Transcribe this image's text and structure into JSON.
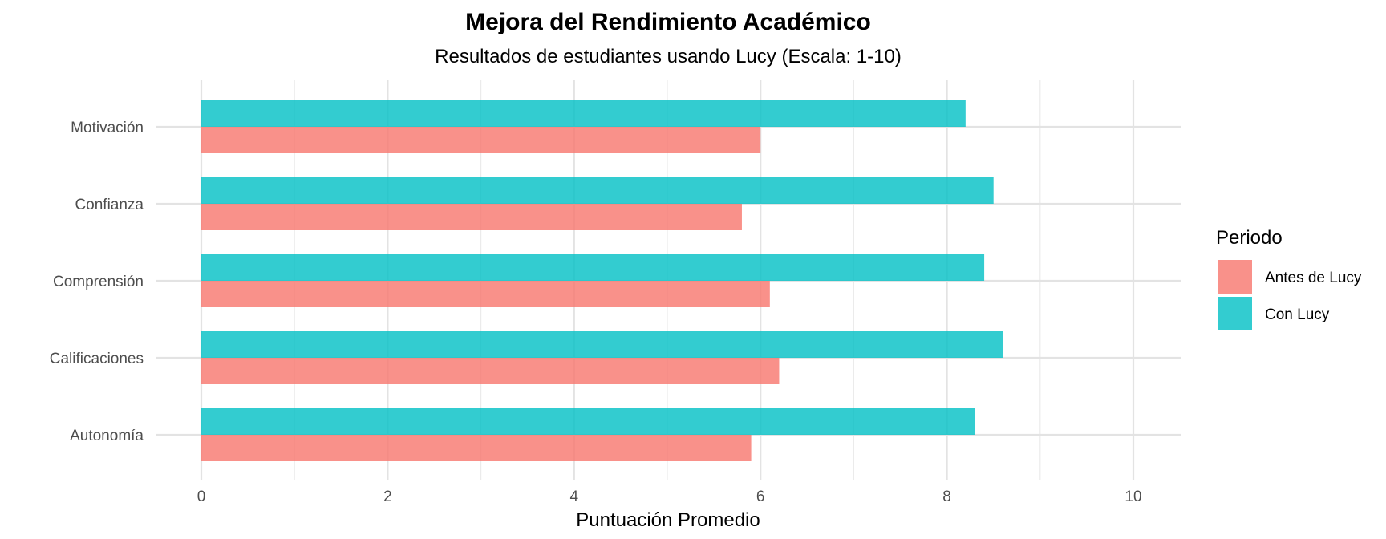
{
  "chart_data": {
    "type": "bar",
    "orientation": "horizontal",
    "title": "Mejora del Rendimiento Académico",
    "subtitle": "Resultados de estudiantes usando Lucy (Escala: 1-10)",
    "xlabel": "Puntuación Promedio",
    "ylabel": "",
    "xlim": [
      0,
      10
    ],
    "xticks": [
      0,
      2,
      4,
      6,
      8,
      10
    ],
    "grid": true,
    "legend": {
      "title": "Periodo",
      "position": "right"
    },
    "categories": [
      "Motivación",
      "Confianza",
      "Comprensión",
      "Calificaciones",
      "Autonomía"
    ],
    "series": [
      {
        "name": "Antes de Lucy",
        "color": "#F8766D",
        "values": [
          6.0,
          5.8,
          6.1,
          6.2,
          5.9
        ]
      },
      {
        "name": "Con Lucy",
        "color": "#00BFC4",
        "values": [
          8.2,
          8.5,
          8.4,
          8.6,
          8.3
        ]
      }
    ]
  }
}
